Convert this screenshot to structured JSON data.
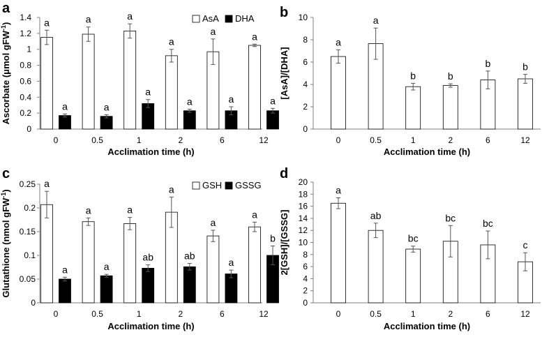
{
  "colors": {
    "open_fill": "#ffffff",
    "solid_fill": "#000000",
    "axis": "#7f7f7f"
  },
  "chart_data": [
    {
      "panel": "a",
      "type": "bar",
      "categories": [
        "0",
        "0.5",
        "1",
        "2",
        "6",
        "12"
      ],
      "xlabel": "Acclimation time (h)",
      "ylabel_main": "Ascorbate  (",
      "ylabel_unit": "μmol gFW",
      "ylabel_sup": "-1",
      "ylabel_end": ")",
      "ylim": [
        0,
        1.4
      ],
      "yticks": [
        "0",
        "0.2",
        "0.4",
        "0.6",
        "0.8",
        "1",
        "1.2",
        "1.4"
      ],
      "ytick_values": [
        0,
        0.2,
        0.4,
        0.6,
        0.8,
        1,
        1.2,
        1.4
      ],
      "legend": "top-right",
      "series": [
        {
          "name": "AsA",
          "style": "open",
          "values": [
            1.15,
            1.19,
            1.23,
            0.92,
            0.97,
            1.05
          ],
          "errors": [
            0.09,
            0.09,
            0.09,
            0.08,
            0.16,
            0.015
          ],
          "letters": [
            "a",
            "a",
            "a",
            "a",
            "a",
            "a"
          ]
        },
        {
          "name": "DHA",
          "style": "solid",
          "values": [
            0.17,
            0.16,
            0.32,
            0.23,
            0.23,
            0.23
          ],
          "errors": [
            0.02,
            0.02,
            0.05,
            0.02,
            0.05,
            0.03
          ],
          "letters": [
            "a",
            "a",
            "a",
            "a",
            "a",
            "a"
          ]
        }
      ]
    },
    {
      "panel": "b",
      "type": "bar",
      "categories": [
        "0",
        "0.5",
        "1",
        "2",
        "6",
        "12"
      ],
      "xlabel": "Acclimation time (h)",
      "ylabel_main": "[AsA]/[DHA]",
      "ylim": [
        0,
        10
      ],
      "yticks": [
        "0",
        "2",
        "4",
        "6",
        "8",
        "10"
      ],
      "ytick_values": [
        0,
        2,
        4,
        6,
        8,
        10
      ],
      "series": [
        {
          "style": "open",
          "values": [
            6.5,
            7.65,
            3.8,
            3.9,
            4.4,
            4.5
          ],
          "errors": [
            0.6,
            1.4,
            0.3,
            0.15,
            0.8,
            0.4
          ],
          "letters": [
            "a",
            "a",
            "b",
            "b",
            "b",
            "b"
          ]
        }
      ]
    },
    {
      "panel": "c",
      "type": "bar",
      "categories": [
        "0",
        "0.5",
        "1",
        "2",
        "6",
        "12"
      ],
      "xlabel": "Acclimation time (h)",
      "ylabel_main": "Glutathione (nmol gFW",
      "ylabel_sup": "-1",
      "ylabel_end": ")",
      "ylim": [
        0,
        0.25
      ],
      "yticks": [
        "0",
        "0.05",
        "0.1",
        "0.15",
        "0.2",
        "0.25"
      ],
      "ytick_values": [
        0,
        0.05,
        0.1,
        0.15,
        0.2,
        0.25
      ],
      "legend": "top-right",
      "series": [
        {
          "name": "GSH",
          "style": "open",
          "values": [
            0.207,
            0.171,
            0.167,
            0.191,
            0.141,
            0.16
          ],
          "errors": [
            0.028,
            0.008,
            0.013,
            0.032,
            0.012,
            0.01
          ],
          "letters": [
            "a",
            "a",
            "a",
            "a",
            "a",
            "a"
          ]
        },
        {
          "name": "GSSG",
          "style": "solid",
          "values": [
            0.05,
            0.057,
            0.073,
            0.076,
            0.061,
            0.1
          ],
          "errors": [
            0.004,
            0.003,
            0.007,
            0.007,
            0.008,
            0.02
          ],
          "letters": [
            "a",
            "a",
            "ab",
            "ab",
            "a",
            "b"
          ]
        }
      ]
    },
    {
      "panel": "d",
      "type": "bar",
      "categories": [
        "0",
        "0.5",
        "1",
        "2",
        "6",
        "12"
      ],
      "xlabel": "Acclimation time (h)",
      "ylabel_main": "2[GSH]/[GSSG]",
      "ylim": [
        0,
        20
      ],
      "yticks": [
        "0",
        "2",
        "4",
        "6",
        "8",
        "10",
        "12",
        "14",
        "16",
        "18",
        "20"
      ],
      "ytick_values": [
        0,
        2,
        4,
        6,
        8,
        10,
        12,
        14,
        16,
        18,
        20
      ],
      "series": [
        {
          "style": "open",
          "values": [
            16.5,
            12.0,
            8.9,
            10.2,
            9.6,
            6.8
          ],
          "errors": [
            0.9,
            1.2,
            0.5,
            2.6,
            2.3,
            1.5
          ],
          "letters": [
            "a",
            "ab",
            "bc",
            "bc",
            "bc",
            "c"
          ]
        }
      ]
    }
  ]
}
